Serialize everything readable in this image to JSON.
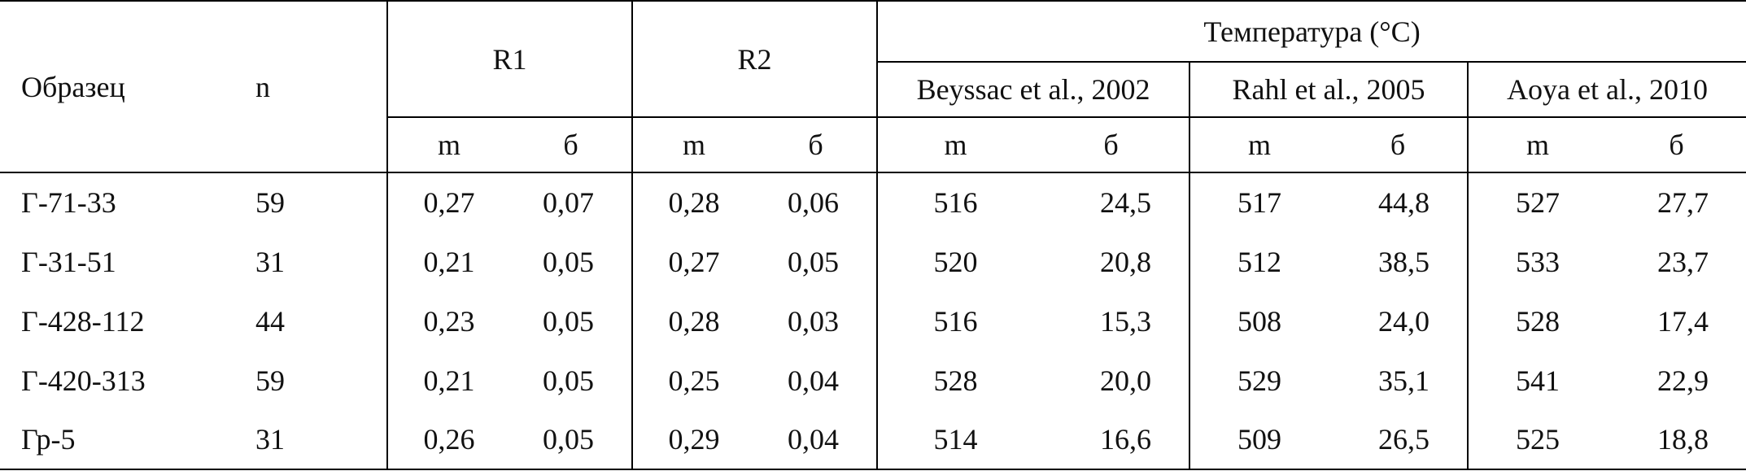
{
  "table": {
    "headers": {
      "sample": "Образец",
      "n": "n",
      "r1": "R1",
      "r2": "R2",
      "temperature": "Температура (°C)",
      "methods": [
        "Beyssac et al., 2002",
        "Rahl et al., 2005",
        "Aoya et al., 2010"
      ],
      "sub": [
        "m",
        "б",
        "m",
        "б",
        "m",
        "б",
        "m",
        "б",
        "m",
        "б"
      ]
    },
    "rows": [
      [
        "Г-71-33",
        "59",
        "0,27",
        "0,07",
        "0,28",
        "0,06",
        "516",
        "24,5",
        "517",
        "44,8",
        "527",
        "27,7"
      ],
      [
        "Г-31-51",
        "31",
        "0,21",
        "0,05",
        "0,27",
        "0,05",
        "520",
        "20,8",
        "512",
        "38,5",
        "533",
        "23,7"
      ],
      [
        "Г-428-112",
        "44",
        "0,23",
        "0,05",
        "0,28",
        "0,03",
        "516",
        "15,3",
        "508",
        "24,0",
        "528",
        "17,4"
      ],
      [
        "Г-420-313",
        "59",
        "0,21",
        "0,05",
        "0,25",
        "0,04",
        "528",
        "20,0",
        "529",
        "35,1",
        "541",
        "22,9"
      ],
      [
        "Гр-5",
        "31",
        "0,26",
        "0,05",
        "0,29",
        "0,04",
        "514",
        "16,6",
        "509",
        "26,5",
        "525",
        "18,8"
      ]
    ]
  }
}
